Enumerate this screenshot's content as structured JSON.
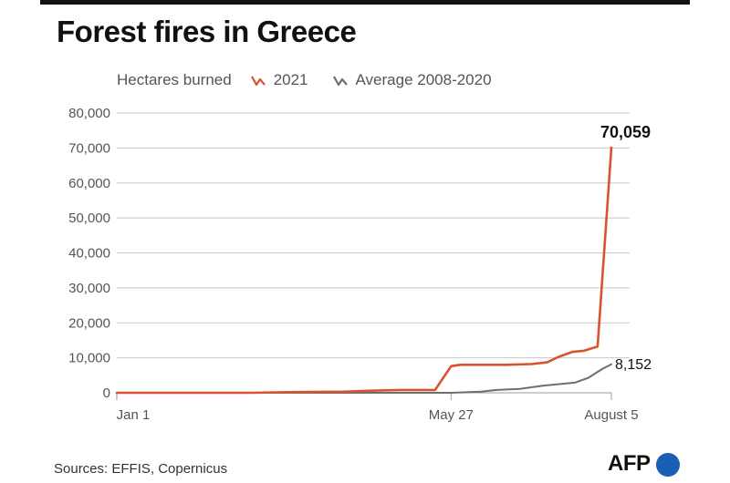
{
  "title": "Forest fires in Greece",
  "legend": {
    "label": "Hectares burned",
    "items": [
      {
        "name": "2021",
        "color": "#d9532f"
      },
      {
        "name": "Average 2008-2020",
        "color": "#6e6e6e"
      }
    ]
  },
  "source": "Sources: EFFIS, Copernicus",
  "logo": {
    "text": "AFP",
    "dot_color": "#1a5fb4"
  },
  "chart_data": {
    "type": "line",
    "title": "Forest fires in Greece",
    "ylabel": "Hectares burned",
    "xlabel": "",
    "x_tick_labels": [
      "Jan 1",
      "May 27",
      "August 5"
    ],
    "y_ticks": [
      0,
      10000,
      20000,
      30000,
      40000,
      50000,
      60000,
      70000,
      80000
    ],
    "y_tick_labels": [
      "0",
      "10,000",
      "20,000",
      "30,000",
      "40,000",
      "50,000",
      "60,000",
      "70,000",
      "80,000"
    ],
    "ylim": [
      0,
      80000
    ],
    "xlim": [
      "2021-01-01",
      "2021-08-05"
    ],
    "grid": true,
    "legend_position": "top",
    "series": [
      {
        "name": "2021",
        "color": "#d9532f",
        "end_label": "70,059",
        "points": [
          [
            "2021-01-01",
            0
          ],
          [
            "2021-02-15",
            0
          ],
          [
            "2021-03-01",
            0
          ],
          [
            "2021-03-20",
            200
          ],
          [
            "2021-04-10",
            300
          ],
          [
            "2021-04-22",
            600
          ],
          [
            "2021-05-05",
            800
          ],
          [
            "2021-05-20",
            800
          ],
          [
            "2021-05-27",
            7600
          ],
          [
            "2021-05-31",
            8000
          ],
          [
            "2021-06-20",
            8000
          ],
          [
            "2021-07-01",
            8200
          ],
          [
            "2021-07-08",
            8700
          ],
          [
            "2021-07-13",
            10300
          ],
          [
            "2021-07-19",
            11700
          ],
          [
            "2021-07-24",
            12000
          ],
          [
            "2021-07-30",
            13200
          ],
          [
            "2021-08-05",
            70059
          ]
        ]
      },
      {
        "name": "Average 2008-2020",
        "color": "#6e6e6e",
        "end_label": "8,152",
        "points": [
          [
            "2021-01-01",
            0
          ],
          [
            "2021-05-27",
            0
          ],
          [
            "2021-06-09",
            300
          ],
          [
            "2021-06-16",
            800
          ],
          [
            "2021-06-26",
            1100
          ],
          [
            "2021-07-06",
            2000
          ],
          [
            "2021-07-20",
            2900
          ],
          [
            "2021-07-26",
            4300
          ],
          [
            "2021-08-01",
            6800
          ],
          [
            "2021-08-05",
            8152
          ]
        ]
      }
    ]
  }
}
